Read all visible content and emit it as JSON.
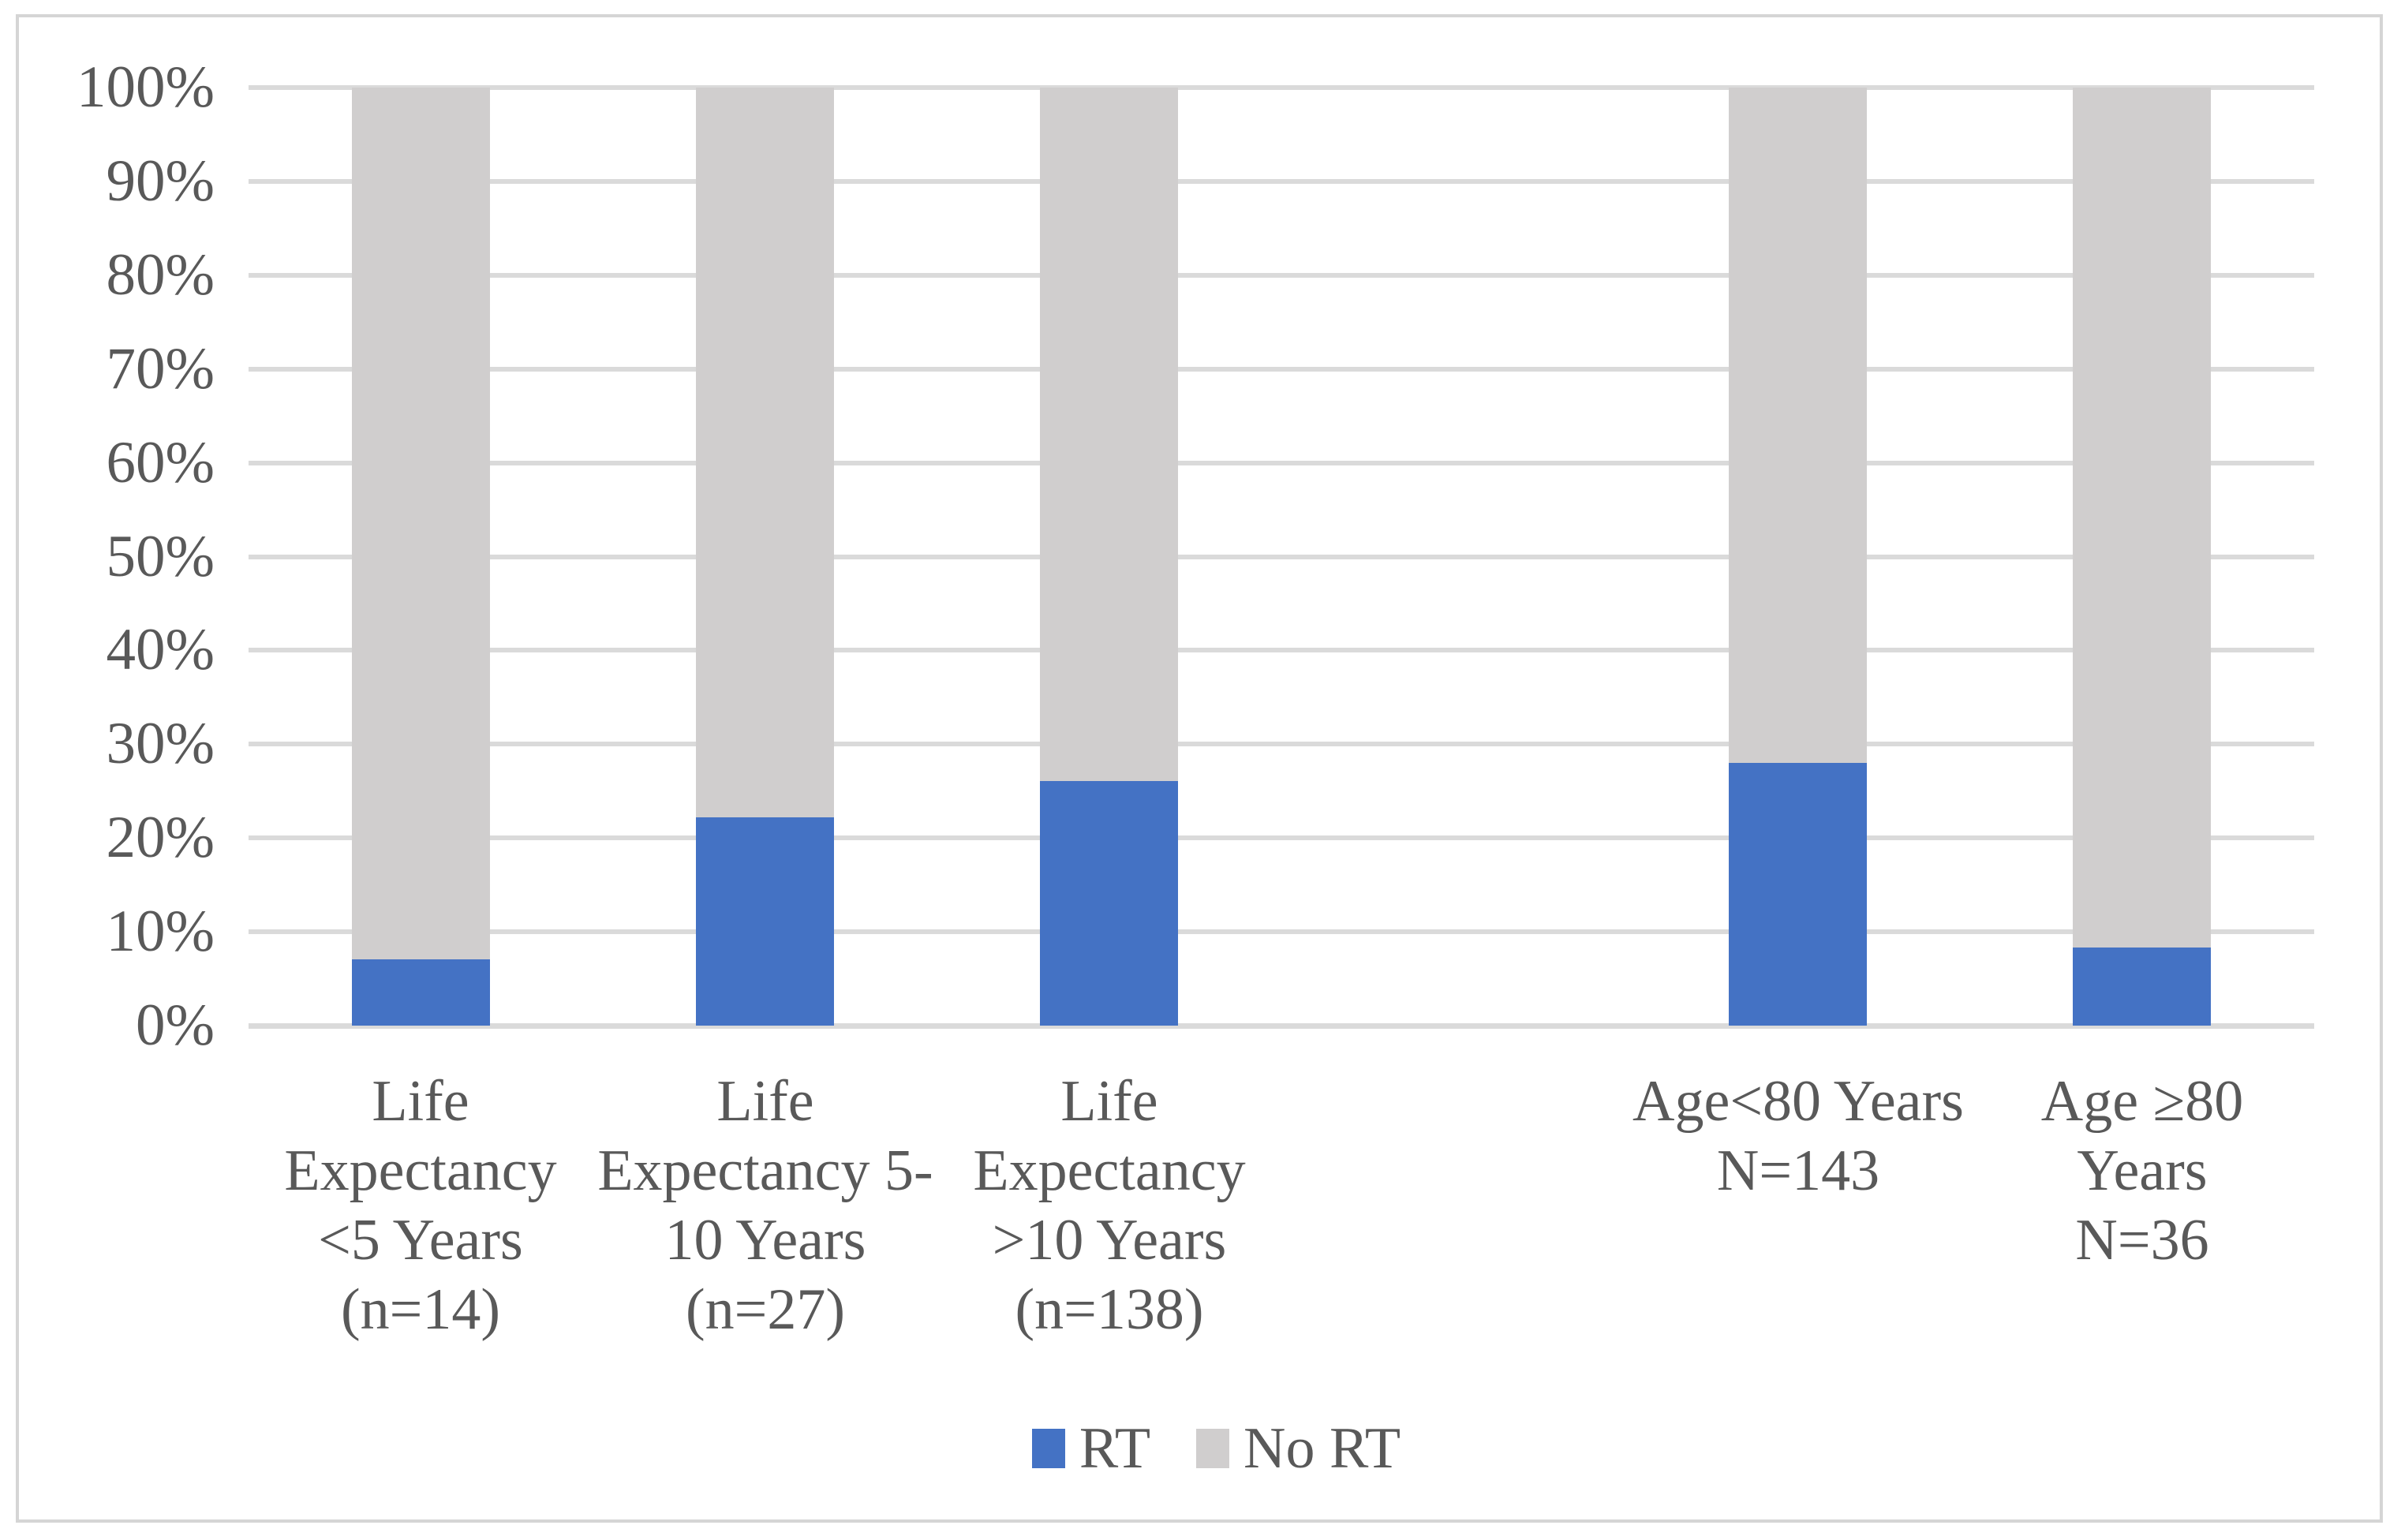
{
  "chart_data": {
    "type": "bar",
    "variant": "stacked-100-percent-column",
    "title": "",
    "xlabel": "",
    "ylabel": "",
    "ylim": [
      0,
      100
    ],
    "grid": true,
    "legend_position": "bottom",
    "y_tick_labels": [
      "0%",
      "10%",
      "20%",
      "30%",
      "40%",
      "50%",
      "60%",
      "70%",
      "80%",
      "90%",
      "100%"
    ],
    "y_tick_values": [
      0,
      10,
      20,
      30,
      40,
      50,
      60,
      70,
      80,
      90,
      100
    ],
    "num_category_slots": 6,
    "categories": [
      {
        "label": "Life Expectancy <5 Years (n=14)",
        "label_lines": [
          "Life",
          "Expectancy",
          "<5 Years",
          "(n=14)"
        ],
        "slot": 0
      },
      {
        "label": "Life Expectancy 5-10 Years (n=27)",
        "label_lines": [
          "Life",
          "Expectancy 5-",
          "10 Years",
          "(n=27)"
        ],
        "slot": 1
      },
      {
        "label": "Life Expectancy >10 Years (n=138)",
        "label_lines": [
          "Life",
          "Expectancy",
          ">10 Years",
          "(n=138)"
        ],
        "slot": 2
      },
      {
        "label": "Age<80 Years N=143",
        "label_lines": [
          "Age<80 Years",
          "N=143"
        ],
        "slot": 4
      },
      {
        "label": "Age ≥80 Years N=36",
        "label_lines": [
          "Age ≥80",
          "Years",
          "N=36"
        ],
        "slot": 5
      }
    ],
    "series": [
      {
        "name": "RT",
        "color": "#4472c4",
        "values": [
          7.1,
          22.2,
          26.1,
          28.0,
          8.3
        ]
      },
      {
        "name": "No RT",
        "color": "#d0cece",
        "values": [
          92.9,
          77.8,
          73.9,
          72.0,
          91.7
        ]
      }
    ]
  },
  "colors": {
    "rt_blue": "#4472c4",
    "no_rt_gray": "#d0cece",
    "gridline": "#dadada",
    "axis_text": "#595959",
    "figure_border": "#d5d5d5",
    "background": "#ffffff"
  },
  "legend": {
    "items": [
      {
        "label": "RT",
        "color": "#4472c4"
      },
      {
        "label": "No RT",
        "color": "#d0cece"
      }
    ]
  }
}
